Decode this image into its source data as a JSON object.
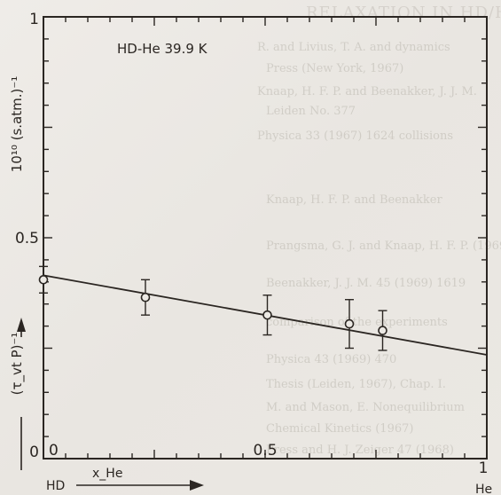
{
  "chart_data": {
    "type": "scatter",
    "title": "HD-He 39.9 K",
    "ylabel_top": "10¹⁰ (s.atm.)⁻¹",
    "ylabel_bottom": "(τ_vt P)⁻¹",
    "xlabel": "x_He",
    "x_start_label": "HD",
    "x_end_label": "He",
    "xlim": [
      0,
      1
    ],
    "ylim": [
      0,
      1
    ],
    "x_ticks": [
      {
        "value": 0,
        "label": "0"
      },
      {
        "value": 0.5,
        "label": "0.5"
      },
      {
        "value": 1,
        "label": "1"
      }
    ],
    "y_ticks": [
      {
        "value": 0,
        "label": "0"
      },
      {
        "value": 0.5,
        "label": "0.5"
      },
      {
        "value": 1,
        "label": "1"
      }
    ],
    "points": [
      {
        "x": 0.0,
        "y": 0.405,
        "err": 0.03
      },
      {
        "x": 0.23,
        "y": 0.365,
        "err": 0.04
      },
      {
        "x": 0.505,
        "y": 0.325,
        "err": 0.045
      },
      {
        "x": 0.69,
        "y": 0.305,
        "err": 0.055
      },
      {
        "x": 0.765,
        "y": 0.29,
        "err": 0.045
      }
    ],
    "fit_line": {
      "x": [
        0,
        1
      ],
      "y": [
        0.415,
        0.235
      ]
    },
    "grid": false,
    "colors": {
      "ink": "#2b2622",
      "paper": "#ece9e4"
    }
  }
}
